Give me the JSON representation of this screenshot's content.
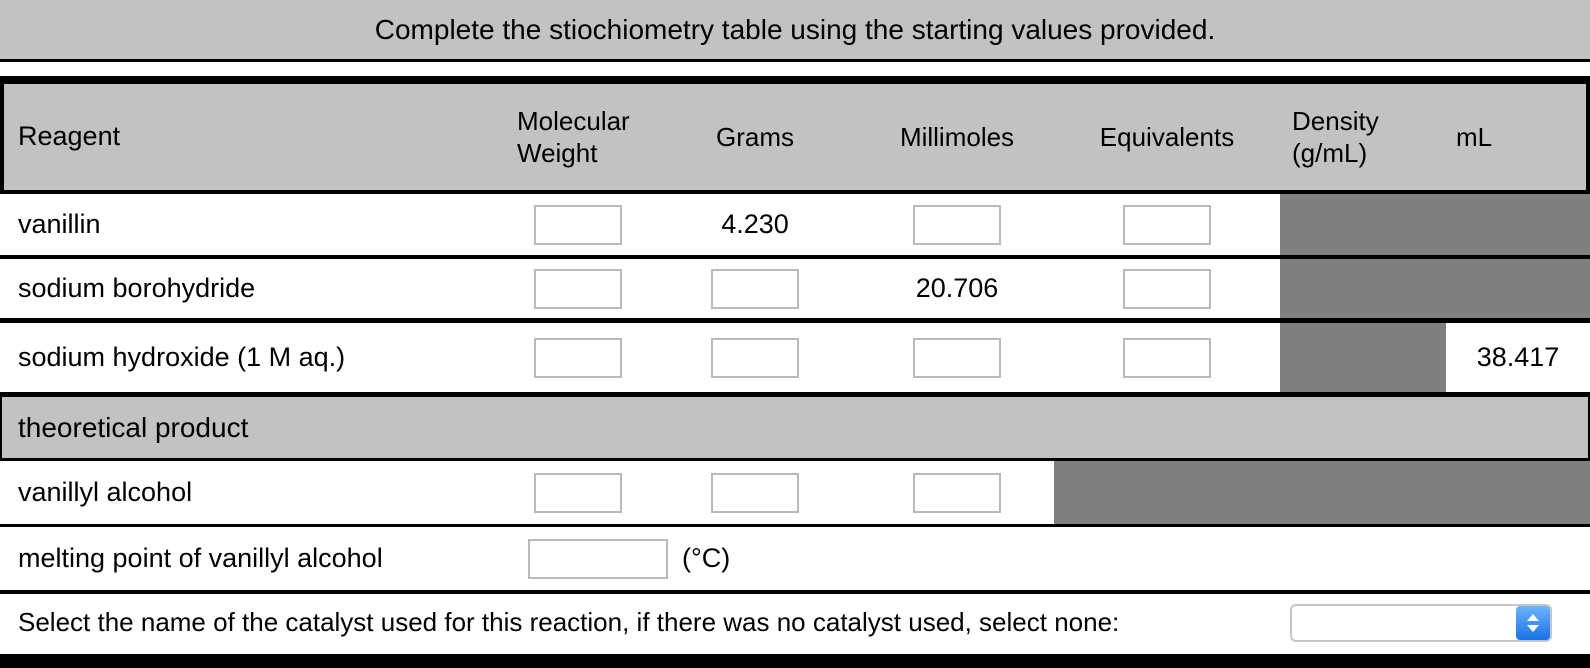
{
  "title": "Complete the stiochiometry table using the starting values provided.",
  "table": {
    "headers": {
      "reagent": "Reagent",
      "molecular_weight": "Molecular Weight",
      "grams": "Grams",
      "millimoles": "Millimoles",
      "equivalents": "Equivalents",
      "density": "Density (g/mL)",
      "ml": "mL"
    },
    "rows": [
      {
        "reagent": "vanillin",
        "grams": "4.230"
      },
      {
        "reagent": "sodium borohydride",
        "millimoles": "20.706"
      },
      {
        "reagent": "sodium hydroxide (1 M aq.)",
        "ml": "38.417"
      }
    ],
    "section_label": "theoretical product",
    "product_row": {
      "reagent": "vanillyl alcohol"
    },
    "melting_row": {
      "label": "melting point of vanillyl alcohol",
      "unit": "(°C)"
    }
  },
  "catalyst": {
    "prompt": "Select the name of the catalyst used for this reaction, if there was no catalyst used, select none:",
    "selected_value": ""
  },
  "colors": {
    "banner_gray": "#c2c2c2",
    "disabled_cell_gray": "#7f7f7f",
    "input_border_gray": "#b9b9b9",
    "select_blue": "#1a72e8",
    "border_black": "#000000"
  }
}
